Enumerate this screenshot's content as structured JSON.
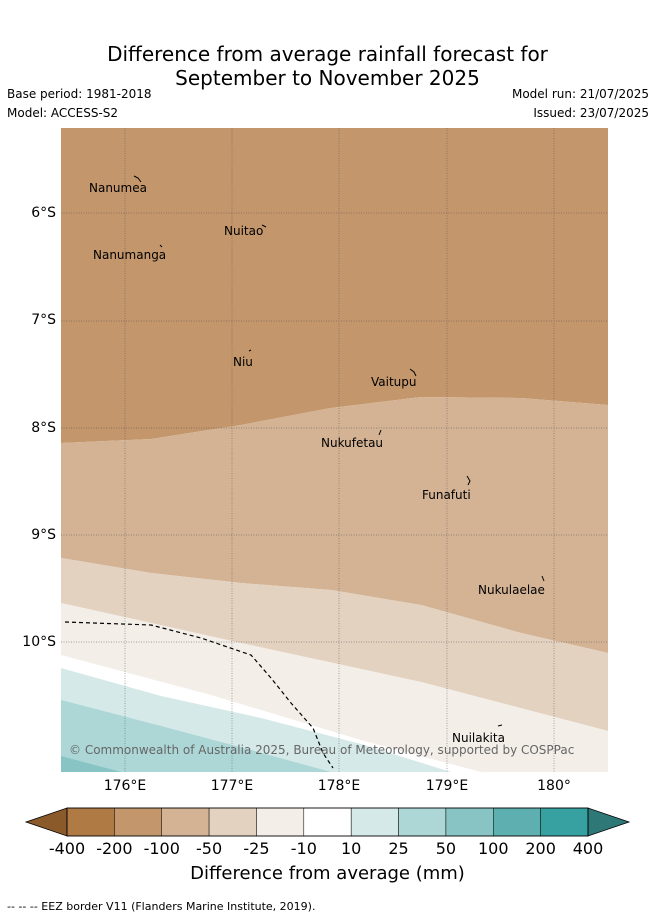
{
  "title_line1": "Difference from average rainfall forecast for",
  "title_line2": "September to November 2025",
  "base_period": "Base period: 1981-2018",
  "model": "Model: ACCESS-S2",
  "model_run": "Model run: 21/07/2025",
  "issued": "Issued: 23/07/2025",
  "lat_labels": [
    "6°S",
    "7°S",
    "8°S",
    "9°S",
    "10°S"
  ],
  "lon_labels": [
    "176°E",
    "177°E",
    "178°E",
    "179°E",
    "180°"
  ],
  "places": [
    "Nanumea",
    "Nuitao",
    "Nanumanga",
    "Niu",
    "Vaitupu",
    "Nukufetau",
    "Funafuti",
    "Nukulaelae",
    "Nuilakita"
  ],
  "copyright": "© Commonwealth of Australia 2025, Bureau of Meteorology, supported by COSPPac",
  "colorbar": {
    "labels": [
      "-400",
      "-200",
      "-100",
      "-50",
      "-25",
      "-10",
      "10",
      "25",
      "50",
      "100",
      "200",
      "400"
    ],
    "colors": [
      "#8a5a2b",
      "#b07a45",
      "#c3966b",
      "#d4b394",
      "#e4d2c1",
      "#f3eee8",
      "#ffffff",
      "#d5e9e8",
      "#add7d7",
      "#88c4c4",
      "#5eafaf",
      "#37a0a0",
      "#2e7878"
    ],
    "title": "Difference from average (mm)"
  },
  "footer": "-- -- -- EEZ border V11 (Flanders Marine Institute, 2019)."
}
